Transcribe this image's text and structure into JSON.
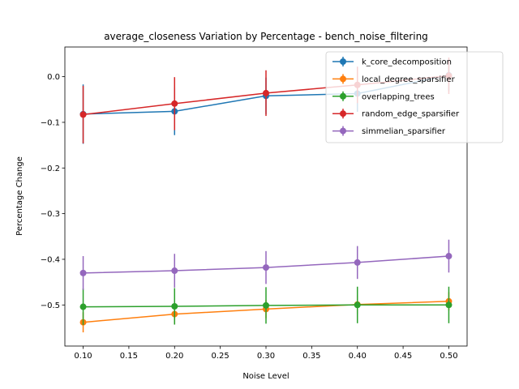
{
  "chart_data": {
    "type": "line",
    "title": "average_closeness Variation by Percentage - bench_noise_filtering",
    "xlabel": "Noise Level",
    "ylabel": "Percentage Change",
    "x": [
      0.1,
      0.2,
      0.3,
      0.4,
      0.5
    ],
    "xlim": [
      0.08,
      0.52
    ],
    "ylim": [
      -0.59,
      0.065
    ],
    "xticks": [
      0.1,
      0.15,
      0.2,
      0.25,
      0.3,
      0.35,
      0.4,
      0.45,
      0.5
    ],
    "xtick_labels": [
      "0.10",
      "0.15",
      "0.20",
      "0.25",
      "0.30",
      "0.35",
      "0.40",
      "0.45",
      "0.50"
    ],
    "yticks": [
      0.0,
      -0.1,
      -0.2,
      -0.3,
      -0.4,
      -0.5
    ],
    "ytick_labels": [
      "0.0",
      "−0.1",
      "−0.2",
      "−0.3",
      "−0.4",
      "−0.5"
    ],
    "grid": false,
    "legend_position": "top-right",
    "series": [
      {
        "name": "k_core_decomposition",
        "color": "#1f77b4",
        "values": [
          -0.082,
          -0.076,
          -0.042,
          -0.037,
          0.003
        ],
        "errors": [
          0.065,
          0.052,
          0.04,
          0.04,
          0.035
        ]
      },
      {
        "name": "local_degree_sparsifier",
        "color": "#ff7f0e",
        "values": [
          -0.538,
          -0.52,
          -0.509,
          -0.499,
          -0.492
        ],
        "errors": [
          0.022,
          0.022,
          0.02,
          0.02,
          0.02
        ]
      },
      {
        "name": "overlapping_trees",
        "color": "#2ca02c",
        "values": [
          -0.504,
          -0.503,
          -0.501,
          -0.5,
          -0.5
        ],
        "errors": [
          0.04,
          0.04,
          0.04,
          0.04,
          0.04
        ]
      },
      {
        "name": "random_edge_sparsifier",
        "color": "#d62728",
        "values": [
          -0.083,
          -0.059,
          -0.036,
          -0.018,
          0.002
        ],
        "errors": [
          0.063,
          0.058,
          0.05,
          0.04,
          0.04
        ]
      },
      {
        "name": "simmelian_sparsifier",
        "color": "#9467bd",
        "values": [
          -0.43,
          -0.425,
          -0.418,
          -0.407,
          -0.393
        ],
        "errors": [
          0.037,
          0.037,
          0.036,
          0.036,
          0.036
        ]
      }
    ]
  }
}
